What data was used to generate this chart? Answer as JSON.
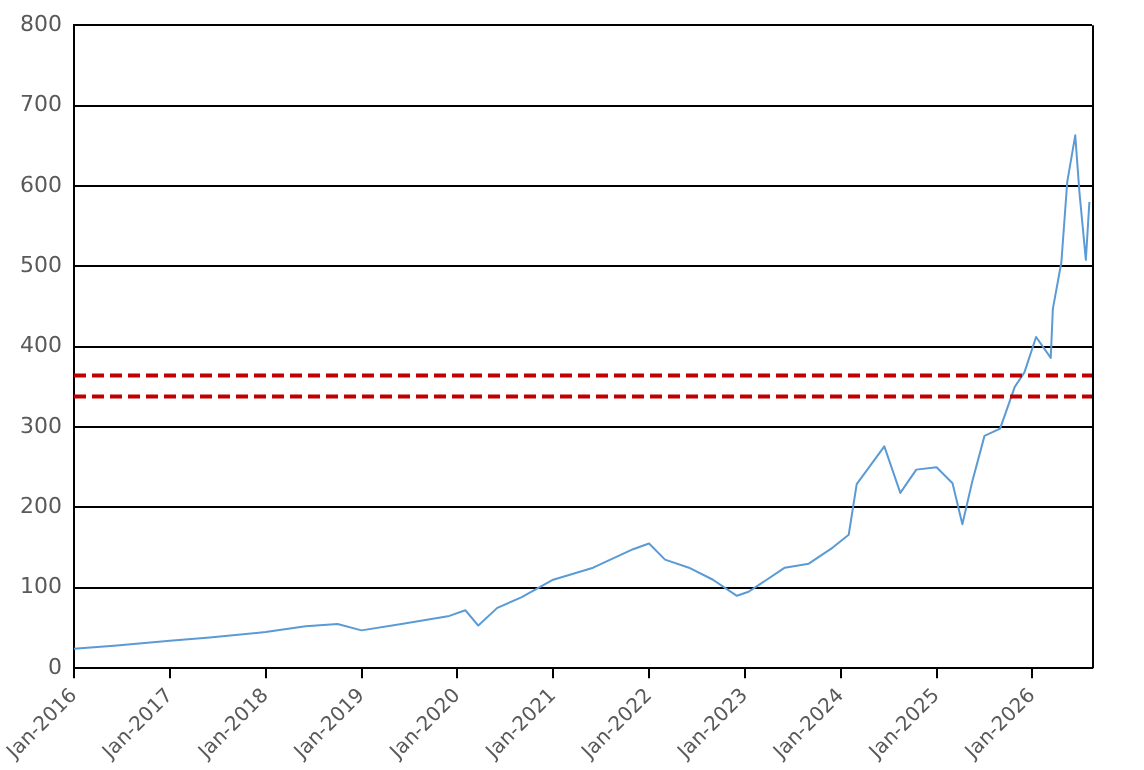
{
  "chart_data": {
    "type": "line",
    "x": [
      "2016-01-01",
      "2016-06-01",
      "2017-01-01",
      "2017-06-01",
      "2018-01-01",
      "2018-06-01",
      "2018-10-01",
      "2019-01-01",
      "2019-06-01",
      "2019-12-01",
      "2020-02-01",
      "2020-03-20",
      "2020-06-01",
      "2020-09-01",
      "2021-01-01",
      "2021-06-01",
      "2021-11-01",
      "2022-01-01",
      "2022-03-01",
      "2022-06-01",
      "2022-09-01",
      "2022-12-01",
      "2023-01-15",
      "2023-06-01",
      "2023-09-01",
      "2023-12-01",
      "2024-02-01",
      "2024-03-01",
      "2024-06-15",
      "2024-08-15",
      "2024-10-15",
      "2025-01-01",
      "2025-03-01",
      "2025-04-08",
      "2025-05-15",
      "2025-07-01",
      "2025-08-30",
      "2025-10-25",
      "2025-12-01",
      "2026-01-15",
      "2026-03-10",
      "2026-03-18",
      "2026-04-20",
      "2026-05-12",
      "2026-06-12",
      "2026-06-28",
      "2026-07-22",
      "2026-08-05"
    ],
    "series": [
      {
        "color": "#5b9bd5",
        "values": [
          24,
          28,
          34,
          38,
          45,
          52,
          55,
          47,
          55,
          65,
          72,
          53,
          75,
          88,
          110,
          125,
          148,
          155,
          135,
          125,
          110,
          90,
          95,
          125,
          130,
          150,
          166,
          229,
          276,
          218,
          247,
          250,
          230,
          179,
          232,
          289,
          298,
          350,
          368,
          412,
          386,
          447,
          505,
          605,
          663,
          592,
          508,
          580
        ]
      }
    ],
    "xlim": [
      "2016-01-01",
      "2026-08-15"
    ],
    "xticks": [
      {
        "value": "2016-01-01",
        "label": "Jan-2016"
      },
      {
        "value": "2017-01-01",
        "label": "Jan-2017"
      },
      {
        "value": "2018-01-01",
        "label": "Jan-2018"
      },
      {
        "value": "2019-01-01",
        "label": "Jan-2019"
      },
      {
        "value": "2020-01-01",
        "label": "Jan-2020"
      },
      {
        "value": "2021-01-01",
        "label": "Jan-2021"
      },
      {
        "value": "2022-01-01",
        "label": "Jan-2022"
      },
      {
        "value": "2023-01-01",
        "label": "Jan-2023"
      },
      {
        "value": "2024-01-01",
        "label": "Jan-2024"
      },
      {
        "value": "2025-01-01",
        "label": "Jan-2025"
      },
      {
        "value": "2026-01-01",
        "label": "Jan-2026"
      }
    ],
    "ylim": [
      0,
      800
    ],
    "yticks": [
      0,
      100,
      200,
      300,
      400,
      500,
      600,
      700,
      800
    ],
    "ref_lines": [
      {
        "axis": "y",
        "value": 364,
        "color": "#c00000",
        "line_style": "dashed"
      },
      {
        "axis": "y",
        "value": 338,
        "color": "#c00000",
        "line_style": "dashed"
      }
    ],
    "grid": "y",
    "legend": false,
    "marker": "none",
    "line_style": "solid"
  }
}
